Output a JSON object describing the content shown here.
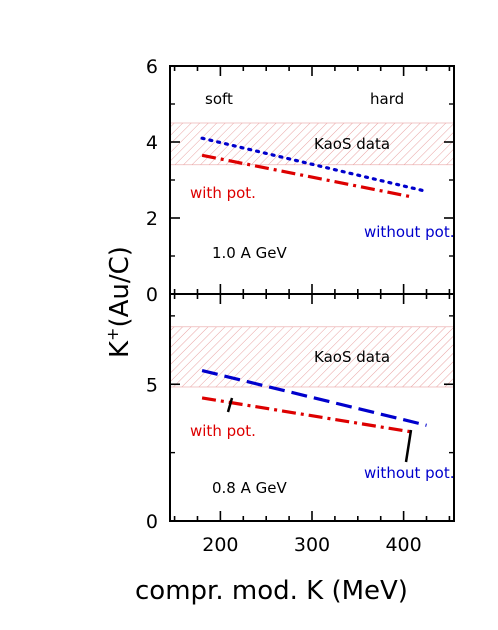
{
  "figure": {
    "ylabel": "K⁺(Au/C)",
    "ylabel_main": "K",
    "ylabel_sup": "+",
    "ylabel_rest": "(Au/C)",
    "xlabel": "compr. mod. K (MeV)"
  },
  "chart_data": [
    {
      "panel": "top",
      "type": "line",
      "xlim": [
        145,
        455
      ],
      "ylim": [
        0,
        6
      ],
      "x_ticks": [
        200,
        300,
        400
      ],
      "y_ticks": [
        {
          "value": 0,
          "label": "0"
        },
        {
          "value": 2,
          "label": "2"
        },
        {
          "value": 4,
          "label": "4"
        },
        {
          "value": 6,
          "label": "6"
        }
      ],
      "band": {
        "ymin": 3.4,
        "ymax": 4.5,
        "label": "KaoS data",
        "color": "#e8a0a0"
      },
      "series": [
        {
          "name": "without pot.",
          "style": "dotted",
          "color": "#0000cc",
          "x": [
            180,
            425
          ],
          "y": [
            4.1,
            2.7
          ]
        },
        {
          "name": "with pot.",
          "style": "dash-dot",
          "color": "#dd0000",
          "x": [
            180,
            410
          ],
          "y": [
            3.65,
            2.55
          ]
        }
      ],
      "annotations": [
        {
          "text": "soft",
          "color": "#000000"
        },
        {
          "text": "hard",
          "color": "#000000"
        },
        {
          "text": "with pot.",
          "color": "#dd0000"
        },
        {
          "text": "without pot.",
          "color": "#0000cc"
        },
        {
          "text": "1.0 A GeV",
          "color": "#000000"
        }
      ]
    },
    {
      "panel": "bottom",
      "type": "line",
      "xlim": [
        145,
        455
      ],
      "ylim": [
        0,
        8.3
      ],
      "x_ticks": [
        {
          "value": 200,
          "label": "200"
        },
        {
          "value": 300,
          "label": "300"
        },
        {
          "value": 400,
          "label": "400"
        }
      ],
      "y_ticks": [
        {
          "value": 0,
          "label": "0"
        },
        {
          "value": 5,
          "label": "5"
        }
      ],
      "band": {
        "ymin": 4.9,
        "ymax": 7.1,
        "label": "KaoS data",
        "color": "#e8a0a0"
      },
      "series": [
        {
          "name": "without pot.",
          "style": "dashed",
          "color": "#0000cc",
          "x": [
            180,
            425
          ],
          "y": [
            5.5,
            3.5
          ]
        },
        {
          "name": "with pot.",
          "style": "dash-dot",
          "color": "#dd0000",
          "x": [
            180,
            410
          ],
          "y": [
            4.5,
            3.25
          ]
        }
      ],
      "annotations": [
        {
          "text": "with pot.",
          "color": "#dd0000"
        },
        {
          "text": "without pot.",
          "color": "#0000cc"
        },
        {
          "text": "0.8 A GeV",
          "color": "#000000"
        }
      ]
    }
  ]
}
